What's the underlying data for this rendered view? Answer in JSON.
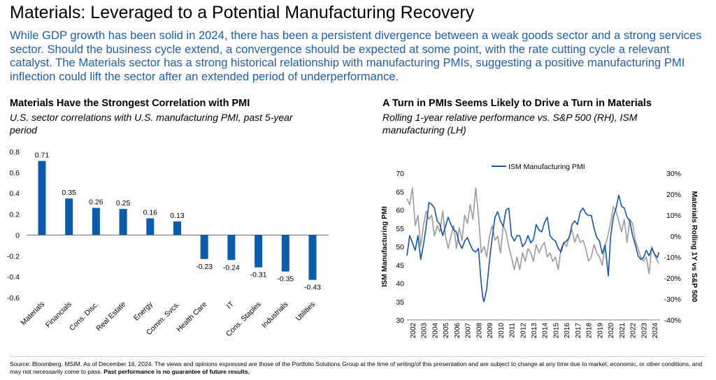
{
  "page": {
    "title": "Materials: Leveraged to a Potential Manufacturing Recovery",
    "intro": "While GDP growth has been solid in 2024, there has been a persistent divergence between a weak goods sector and a strong services sector. Should the business cycle extend, a convergence should be expected at some point, with the rate cutting cycle a relevant catalyst. The Materials sector has a strong historical relationship with manufacturing PMIs, suggesting a positive manufacturing PMI inflection could lift the sector after an extended period of underperformance.",
    "footer_text": "Source: Bloomberg, MSIM. As of December 16, 2024. The views and opinions expressed are those of the Portfolio Solutions Group at the time of writing/of this presentation and are subject to change at any time due to market, economic, or other conditions, and may not necessarily come to pass.",
    "footer_bold": "Past performance is no guarantee of future results."
  },
  "colors": {
    "accent": "#1f5fa8",
    "bar": "#0b5cad",
    "pmi_line": "#1256a7",
    "materials_line": "#9a9a9a"
  },
  "chart_data": [
    {
      "type": "bar",
      "title": "Materials Have the Strongest Correlation with PMI",
      "subtitle": "U.S. sector correlations with U.S. manufacturing PMI, past 5-year period",
      "categories": [
        "Materials",
        "Financials",
        "Cons. Disc.",
        "Real Estate",
        "Energy",
        "Comm. Svcs.",
        "Health Care",
        "IT",
        "Cons. Staples",
        "Industrials",
        "Utilities"
      ],
      "values": [
        0.71,
        0.35,
        0.26,
        0.25,
        0.16,
        0.13,
        -0.23,
        -0.24,
        -0.31,
        -0.35,
        -0.43
      ],
      "data_labels": [
        "0.71",
        "0.35",
        "0.26",
        "0.25",
        "0.16",
        "0.13",
        "-0.23",
        "-0.24",
        "-0.31",
        "-0.35",
        "-0.43"
      ],
      "ylim": [
        -0.6,
        0.8
      ],
      "yticks": [
        "0.8",
        "0.6",
        "0.4",
        "0.2",
        "0",
        "-0.2",
        "-0.4",
        "-0.6"
      ],
      "grid": false
    },
    {
      "type": "line",
      "title": "A Turn in PMIs Seems Likely to Drive a Turn in Materials",
      "subtitle": "Rolling 1-year relative performance vs. S&P 500 (RH), ISM manufacturing (LH)",
      "ylabel_left": "ISM Manufacturing PMI",
      "ylabel_right": "Materials Rolling 1Y vs S&P 500",
      "legend": [
        "ISM Manufacturing PMI"
      ],
      "legend_position": "top-center",
      "ylim_left": [
        30,
        70
      ],
      "ylim_right": [
        -0.4,
        0.3
      ],
      "yticks_left": [
        "70",
        "65",
        "60",
        "55",
        "50",
        "45",
        "40",
        "35",
        "30"
      ],
      "yticks_right": [
        "30%",
        "20%",
        "10%",
        "0%",
        "-10%",
        "-20%",
        "-30%",
        "-40%"
      ],
      "xticks": [
        "2002",
        "2003",
        "2004",
        "2005",
        "2006",
        "2007",
        "2008",
        "2009",
        "2010",
        "2011",
        "2012",
        "2013",
        "2014",
        "2015",
        "2016",
        "2017",
        "2018",
        "2019",
        "2020",
        "2021",
        "2022",
        "2023",
        "2024"
      ],
      "series": [
        {
          "name": "ISM Manufacturing PMI",
          "axis": "left",
          "x": [
            2002.0,
            2002.25,
            2002.5,
            2002.75,
            2003.0,
            2003.25,
            2003.5,
            2003.75,
            2004.0,
            2004.25,
            2004.5,
            2004.75,
            2005.0,
            2005.25,
            2005.5,
            2005.75,
            2006.0,
            2006.25,
            2006.5,
            2006.75,
            2007.0,
            2007.25,
            2007.5,
            2007.75,
            2008.0,
            2008.25,
            2008.5,
            2008.75,
            2008.9,
            2009.0,
            2009.25,
            2009.5,
            2009.75,
            2010.0,
            2010.25,
            2010.5,
            2010.75,
            2011.0,
            2011.25,
            2011.5,
            2011.75,
            2012.0,
            2012.25,
            2012.5,
            2012.75,
            2013.0,
            2013.25,
            2013.5,
            2013.75,
            2014.0,
            2014.25,
            2014.5,
            2014.75,
            2015.0,
            2015.25,
            2015.5,
            2015.75,
            2016.0,
            2016.25,
            2016.5,
            2016.75,
            2017.0,
            2017.25,
            2017.5,
            2017.75,
            2018.0,
            2018.25,
            2018.5,
            2018.75,
            2019.0,
            2019.25,
            2019.5,
            2019.75,
            2020.0,
            2020.3,
            2020.5,
            2020.75,
            2021.0,
            2021.25,
            2021.5,
            2021.75,
            2022.0,
            2022.25,
            2022.5,
            2022.75,
            2023.0,
            2023.25,
            2023.5,
            2023.75,
            2024.0,
            2024.25,
            2024.5,
            2024.75,
            2024.9
          ],
          "values": [
            47.5,
            53.0,
            51.0,
            49.0,
            53.0,
            46.5,
            50.5,
            55.5,
            62.0,
            61.5,
            60.5,
            57.0,
            56.0,
            53.0,
            55.5,
            58.0,
            56.0,
            54.5,
            54.0,
            51.0,
            49.5,
            51.5,
            52.5,
            50.5,
            49.0,
            48.5,
            49.5,
            40.0,
            36.0,
            35.0,
            38.5,
            46.0,
            52.5,
            58.0,
            59.5,
            57.0,
            55.5,
            60.0,
            60.5,
            53.0,
            51.5,
            53.0,
            53.0,
            50.0,
            51.0,
            53.0,
            51.0,
            52.0,
            56.0,
            54.5,
            54.0,
            56.5,
            58.0,
            53.0,
            52.0,
            51.5,
            49.5,
            48.5,
            51.0,
            51.5,
            52.5,
            56.0,
            57.0,
            56.0,
            59.5,
            60.5,
            59.0,
            58.5,
            58.5,
            55.0,
            52.5,
            51.5,
            48.0,
            50.5,
            42.0,
            52.5,
            58.0,
            60.5,
            64.0,
            61.0,
            60.5,
            58.0,
            57.0,
            53.0,
            50.5,
            47.5,
            46.5,
            47.0,
            49.0,
            47.5,
            49.5,
            48.0,
            47.0,
            48.5
          ]
        },
        {
          "name": "",
          "axis": "right",
          "x": [
            2002.0,
            2002.25,
            2002.5,
            2002.75,
            2003.0,
            2003.25,
            2003.5,
            2003.75,
            2004.0,
            2004.25,
            2004.5,
            2004.75,
            2005.0,
            2005.25,
            2005.5,
            2005.75,
            2006.0,
            2006.25,
            2006.5,
            2006.75,
            2007.0,
            2007.25,
            2007.5,
            2007.75,
            2008.0,
            2008.25,
            2008.5,
            2008.75,
            2009.0,
            2009.25,
            2009.5,
            2009.75,
            2010.0,
            2010.25,
            2010.5,
            2010.75,
            2011.0,
            2011.25,
            2011.5,
            2011.75,
            2012.0,
            2012.25,
            2012.5,
            2012.75,
            2013.0,
            2013.25,
            2013.5,
            2013.75,
            2014.0,
            2014.25,
            2014.5,
            2014.75,
            2015.0,
            2015.25,
            2015.5,
            2015.75,
            2016.0,
            2016.25,
            2016.5,
            2016.75,
            2017.0,
            2017.25,
            2017.5,
            2017.75,
            2018.0,
            2018.25,
            2018.5,
            2018.75,
            2019.0,
            2019.25,
            2019.5,
            2019.75,
            2020.0,
            2020.25,
            2020.5,
            2020.75,
            2021.0,
            2021.25,
            2021.5,
            2021.75,
            2022.0,
            2022.25,
            2022.5,
            2022.75,
            2023.0,
            2023.25,
            2023.5,
            2023.75,
            2024.0,
            2024.25,
            2024.5,
            2024.75,
            2024.9
          ],
          "values": [
            0.18,
            0.15,
            0.23,
            0.05,
            0.1,
            -0.05,
            0.05,
            0.12,
            0.08,
            0.1,
            0.0,
            0.05,
            0.02,
            0.12,
            0.0,
            -0.06,
            0.0,
            0.05,
            -0.06,
            0.04,
            -0.02,
            0.1,
            0.06,
            0.15,
            0.08,
            0.23,
            0.1,
            -0.08,
            -0.05,
            -0.1,
            0.0,
            0.05,
            -0.02,
            0.0,
            -0.08,
            0.05,
            0.02,
            -0.05,
            -0.1,
            -0.16,
            -0.1,
            -0.16,
            -0.08,
            -0.12,
            -0.06,
            -0.08,
            -0.12,
            -0.04,
            -0.08,
            -0.05,
            -0.03,
            -0.1,
            -0.08,
            -0.12,
            -0.1,
            -0.16,
            -0.06,
            -0.03,
            -0.05,
            0.0,
            0.03,
            -0.03,
            0.01,
            -0.03,
            -0.02,
            -0.06,
            -0.12,
            -0.1,
            -0.04,
            -0.08,
            -0.1,
            -0.14,
            -0.05,
            0.0,
            0.06,
            0.14,
            0.12,
            0.07,
            0.02,
            0.08,
            -0.03,
            0.08,
            0.06,
            -0.02,
            -0.06,
            -0.1,
            -0.12,
            -0.1,
            -0.18,
            -0.05,
            -0.09,
            -0.12,
            -0.13
          ]
        }
      ]
    }
  ]
}
